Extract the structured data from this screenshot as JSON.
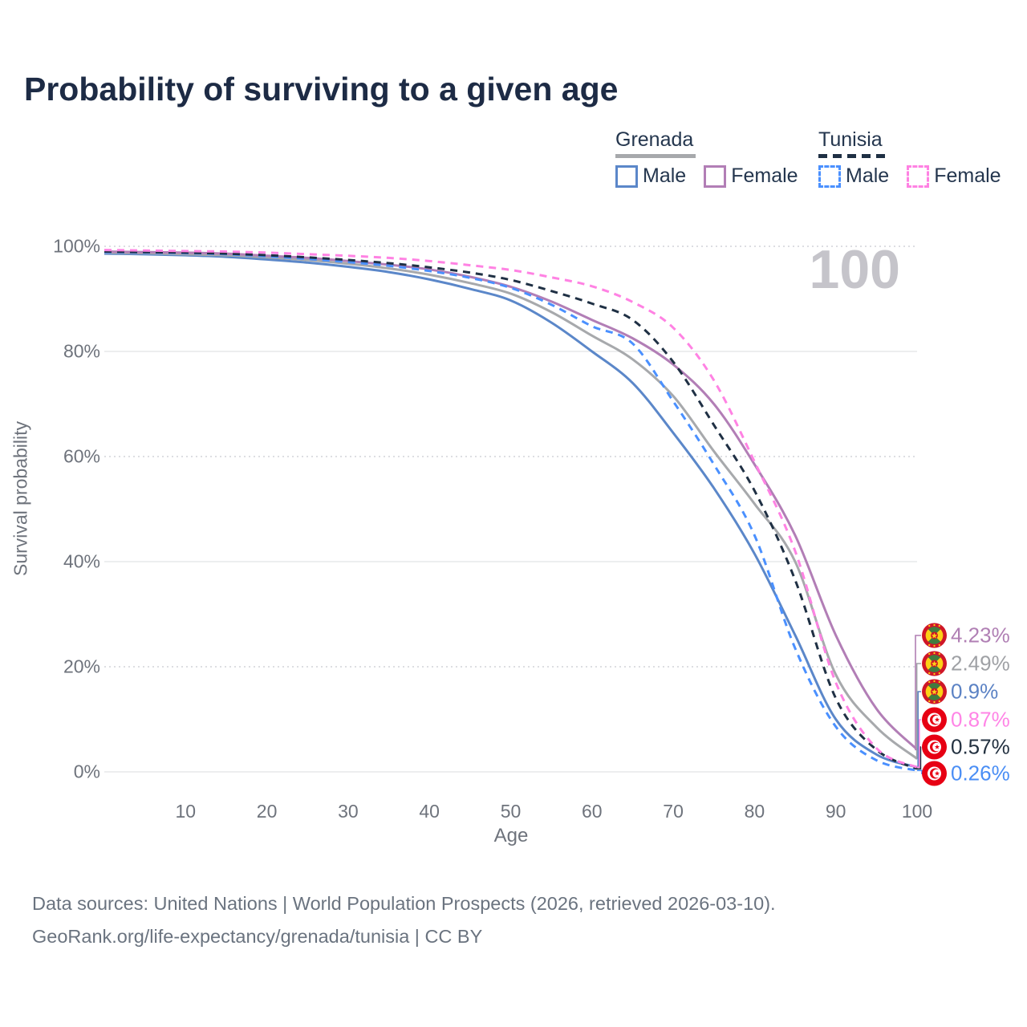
{
  "title": "Probability of surviving to a given age",
  "hover_age_indicator": "100",
  "legend": {
    "groups": [
      {
        "title": "Grenada",
        "line_style": "solid",
        "line_color": "#a7a9ac",
        "items": [
          {
            "label": "Male",
            "color": "#5b87c9",
            "dashed": false
          },
          {
            "label": "Female",
            "color": "#b27eb6",
            "dashed": false
          }
        ]
      },
      {
        "title": "Tunisia",
        "line_style": "dashed",
        "line_color": "#1f3044",
        "items": [
          {
            "label": "Male",
            "color": "#4a90ff",
            "dashed": true
          },
          {
            "label": "Female",
            "color": "#ff82e3",
            "dashed": true
          }
        ]
      }
    ]
  },
  "chart_data": {
    "type": "line",
    "x_label": "Age",
    "y_label": "Survival probability",
    "x_ticks": [
      10,
      20,
      30,
      40,
      50,
      60,
      70,
      80,
      90,
      100
    ],
    "y_ticks": [
      {
        "label": "100%",
        "value": 100,
        "dotted": true
      },
      {
        "label": "80%",
        "value": 80,
        "dotted": false
      },
      {
        "label": "60%",
        "value": 60,
        "dotted": true
      },
      {
        "label": "40%",
        "value": 40,
        "dotted": false
      },
      {
        "label": "20%",
        "value": 20,
        "dotted": true
      },
      {
        "label": "0%",
        "value": 0,
        "dotted": false
      }
    ],
    "x_range": [
      0,
      100
    ],
    "y_range": [
      0,
      100
    ],
    "ages": [
      0,
      5,
      10,
      15,
      20,
      25,
      30,
      35,
      40,
      45,
      50,
      55,
      60,
      65,
      70,
      75,
      80,
      85,
      90,
      95,
      100
    ],
    "series": [
      {
        "name": "Grenada Male",
        "country": "Grenada",
        "style": "solid",
        "color": "#5b87c9",
        "label_color": "#5b82c4",
        "end_label": "0.9%",
        "row": 2,
        "flag": "grenada",
        "values": [
          98.6,
          98.5,
          98.3,
          98.0,
          97.5,
          96.9,
          96.1,
          95.1,
          93.7,
          91.9,
          89.7,
          85.5,
          80.0,
          74.0,
          64.5,
          54.0,
          41.5,
          26.0,
          10.0,
          3.3,
          0.9
        ]
      },
      {
        "name": "Grenada",
        "country": "Grenada",
        "style": "solid",
        "color": "#a7a9ac",
        "label_color": "#9fa1a5",
        "end_label": "2.49%",
        "row": 1,
        "flag": "grenada",
        "values": [
          98.8,
          98.7,
          98.5,
          98.3,
          97.9,
          97.4,
          96.7,
          95.8,
          94.6,
          93.0,
          91.0,
          87.5,
          83.0,
          78.5,
          71.5,
          61.0,
          51.0,
          40.0,
          18.5,
          8.5,
          2.49
        ]
      },
      {
        "name": "Grenada Female",
        "country": "Grenada",
        "style": "solid",
        "color": "#b27eb6",
        "label_color": "#b07fb4",
        "end_label": "4.23%",
        "row": 0,
        "flag": "grenada",
        "values": [
          99.0,
          98.9,
          98.8,
          98.6,
          98.2,
          97.8,
          97.2,
          96.5,
          95.6,
          94.2,
          92.3,
          89.5,
          86.0,
          82.5,
          77.5,
          70.0,
          58.5,
          45.0,
          26.0,
          12.0,
          4.23
        ]
      },
      {
        "name": "Tunisia Male",
        "country": "Tunisia",
        "style": "dashed",
        "color": "#4a90ff",
        "label_color": "#4a8ef5",
        "end_label": "0.26%",
        "row": 5,
        "flag": "tunisia",
        "values": [
          98.9,
          98.8,
          98.7,
          98.5,
          98.1,
          97.6,
          97.0,
          96.3,
          95.3,
          94.0,
          92.1,
          88.9,
          84.8,
          81.5,
          70.5,
          58.5,
          45.0,
          23.5,
          8.6,
          2.2,
          0.26
        ]
      },
      {
        "name": "Tunisia",
        "country": "Tunisia",
        "style": "dashed",
        "color": "#1f3044",
        "label_color": "#233140",
        "end_label": "0.57%",
        "row": 4,
        "flag": "tunisia",
        "values": [
          99.0,
          98.9,
          98.8,
          98.6,
          98.3,
          97.9,
          97.4,
          96.8,
          96.0,
          95.0,
          93.6,
          91.5,
          89.1,
          86.0,
          78.0,
          66.0,
          53.5,
          36.5,
          14.0,
          4.2,
          0.57
        ]
      },
      {
        "name": "Tunisia Female",
        "country": "Tunisia",
        "style": "dashed",
        "color": "#ff82e3",
        "label_color": "#ff85e6",
        "end_label": "0.87%",
        "row": 3,
        "flag": "tunisia",
        "values": [
          99.3,
          99.2,
          99.1,
          99.0,
          98.8,
          98.5,
          98.2,
          97.8,
          97.2,
          96.4,
          95.5,
          94.1,
          92.4,
          89.4,
          84.5,
          74.5,
          59.0,
          42.0,
          17.0,
          4.5,
          0.87
        ]
      }
    ]
  },
  "footer": {
    "line1": "Data sources: United Nations | World Population Prospects (2026, retrieved 2026-03-10).",
    "line2": "GeoRank.org/life-expectancy/grenada/tunisia | CC BY"
  }
}
